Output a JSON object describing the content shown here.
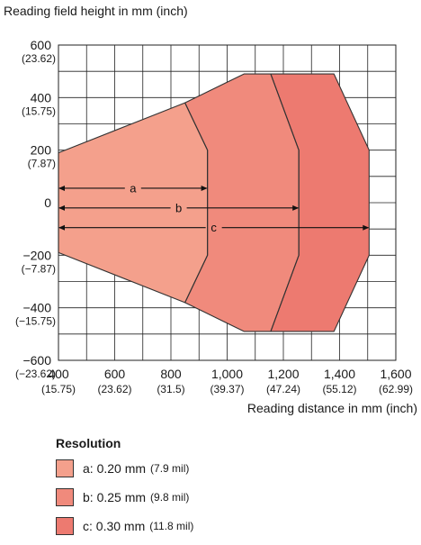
{
  "chart_data": {
    "type": "area",
    "ylabel": "Reading field height in mm (inch)",
    "xlabel": "Reading distance in mm (inch)",
    "xlim": [
      400,
      1600
    ],
    "ylim": [
      -600,
      600
    ],
    "x_ticks": [
      {
        "value": 400,
        "mm": "400",
        "inch": "(15.75)"
      },
      {
        "value": 600,
        "mm": "600",
        "inch": "(23.62)"
      },
      {
        "value": 800,
        "mm": "800",
        "inch": "(31.5)"
      },
      {
        "value": 1000,
        "mm": "1,000",
        "inch": "(39.37)"
      },
      {
        "value": 1200,
        "mm": "1,200",
        "inch": "(47.24)"
      },
      {
        "value": 1400,
        "mm": "1,400",
        "inch": "(55.12)"
      },
      {
        "value": 1600,
        "mm": "1,600",
        "inch": "(62.99)"
      }
    ],
    "y_ticks": [
      {
        "value": 600,
        "mm": "600",
        "inch": "(23.62)"
      },
      {
        "value": 400,
        "mm": "400",
        "inch": "(15.75)"
      },
      {
        "value": 200,
        "mm": "200",
        "inch": "(7.87)"
      },
      {
        "value": 0,
        "mm": "0",
        "inch": ""
      },
      {
        "value": -200,
        "mm": "−200",
        "inch": "(−7.87)"
      },
      {
        "value": -400,
        "mm": "−400",
        "inch": "(−15.75)"
      },
      {
        "value": -600,
        "mm": "−600",
        "inch": "(−23.62)"
      }
    ],
    "grid": true,
    "grid_step_x": 100,
    "grid_step_y": 100,
    "regions": [
      {
        "id": "a",
        "color": "#f4a08c",
        "points": [
          [
            400,
            190
          ],
          [
            850,
            380
          ],
          [
            930,
            200
          ],
          [
            930,
            -200
          ],
          [
            850,
            -380
          ],
          [
            400,
            -190
          ]
        ],
        "arrow": {
          "y": 55,
          "x_start": 400,
          "x_end": 930
        }
      },
      {
        "id": "b",
        "color": "#f08a7c",
        "points": [
          [
            850,
            380
          ],
          [
            1060,
            490
          ],
          [
            1155,
            490
          ],
          [
            1255,
            200
          ],
          [
            1255,
            -200
          ],
          [
            1155,
            -490
          ],
          [
            1060,
            -490
          ],
          [
            850,
            -380
          ],
          [
            930,
            -200
          ],
          [
            930,
            200
          ]
        ],
        "arrow": {
          "y": -20,
          "x_start": 400,
          "x_end": 1255
        }
      },
      {
        "id": "c",
        "color": "#ed7a70",
        "points": [
          [
            1155,
            490
          ],
          [
            1380,
            490
          ],
          [
            1505,
            200
          ],
          [
            1505,
            -200
          ],
          [
            1380,
            -490
          ],
          [
            1155,
            -490
          ],
          [
            1255,
            -200
          ],
          [
            1255,
            200
          ]
        ],
        "arrow": {
          "y": -95,
          "x_start": 400,
          "x_end": 1505
        }
      }
    ]
  },
  "legend": {
    "title": "Resolution",
    "items": [
      {
        "color": "#f4a08c",
        "label": "a: 0.20 mm",
        "sub": "(7.9 mil)"
      },
      {
        "color": "#f08a7c",
        "label": "b: 0.25 mm",
        "sub": "(9.8 mil)"
      },
      {
        "color": "#ed7a70",
        "label": "c: 0.30 mm",
        "sub": "(11.8 mil)"
      }
    ]
  }
}
